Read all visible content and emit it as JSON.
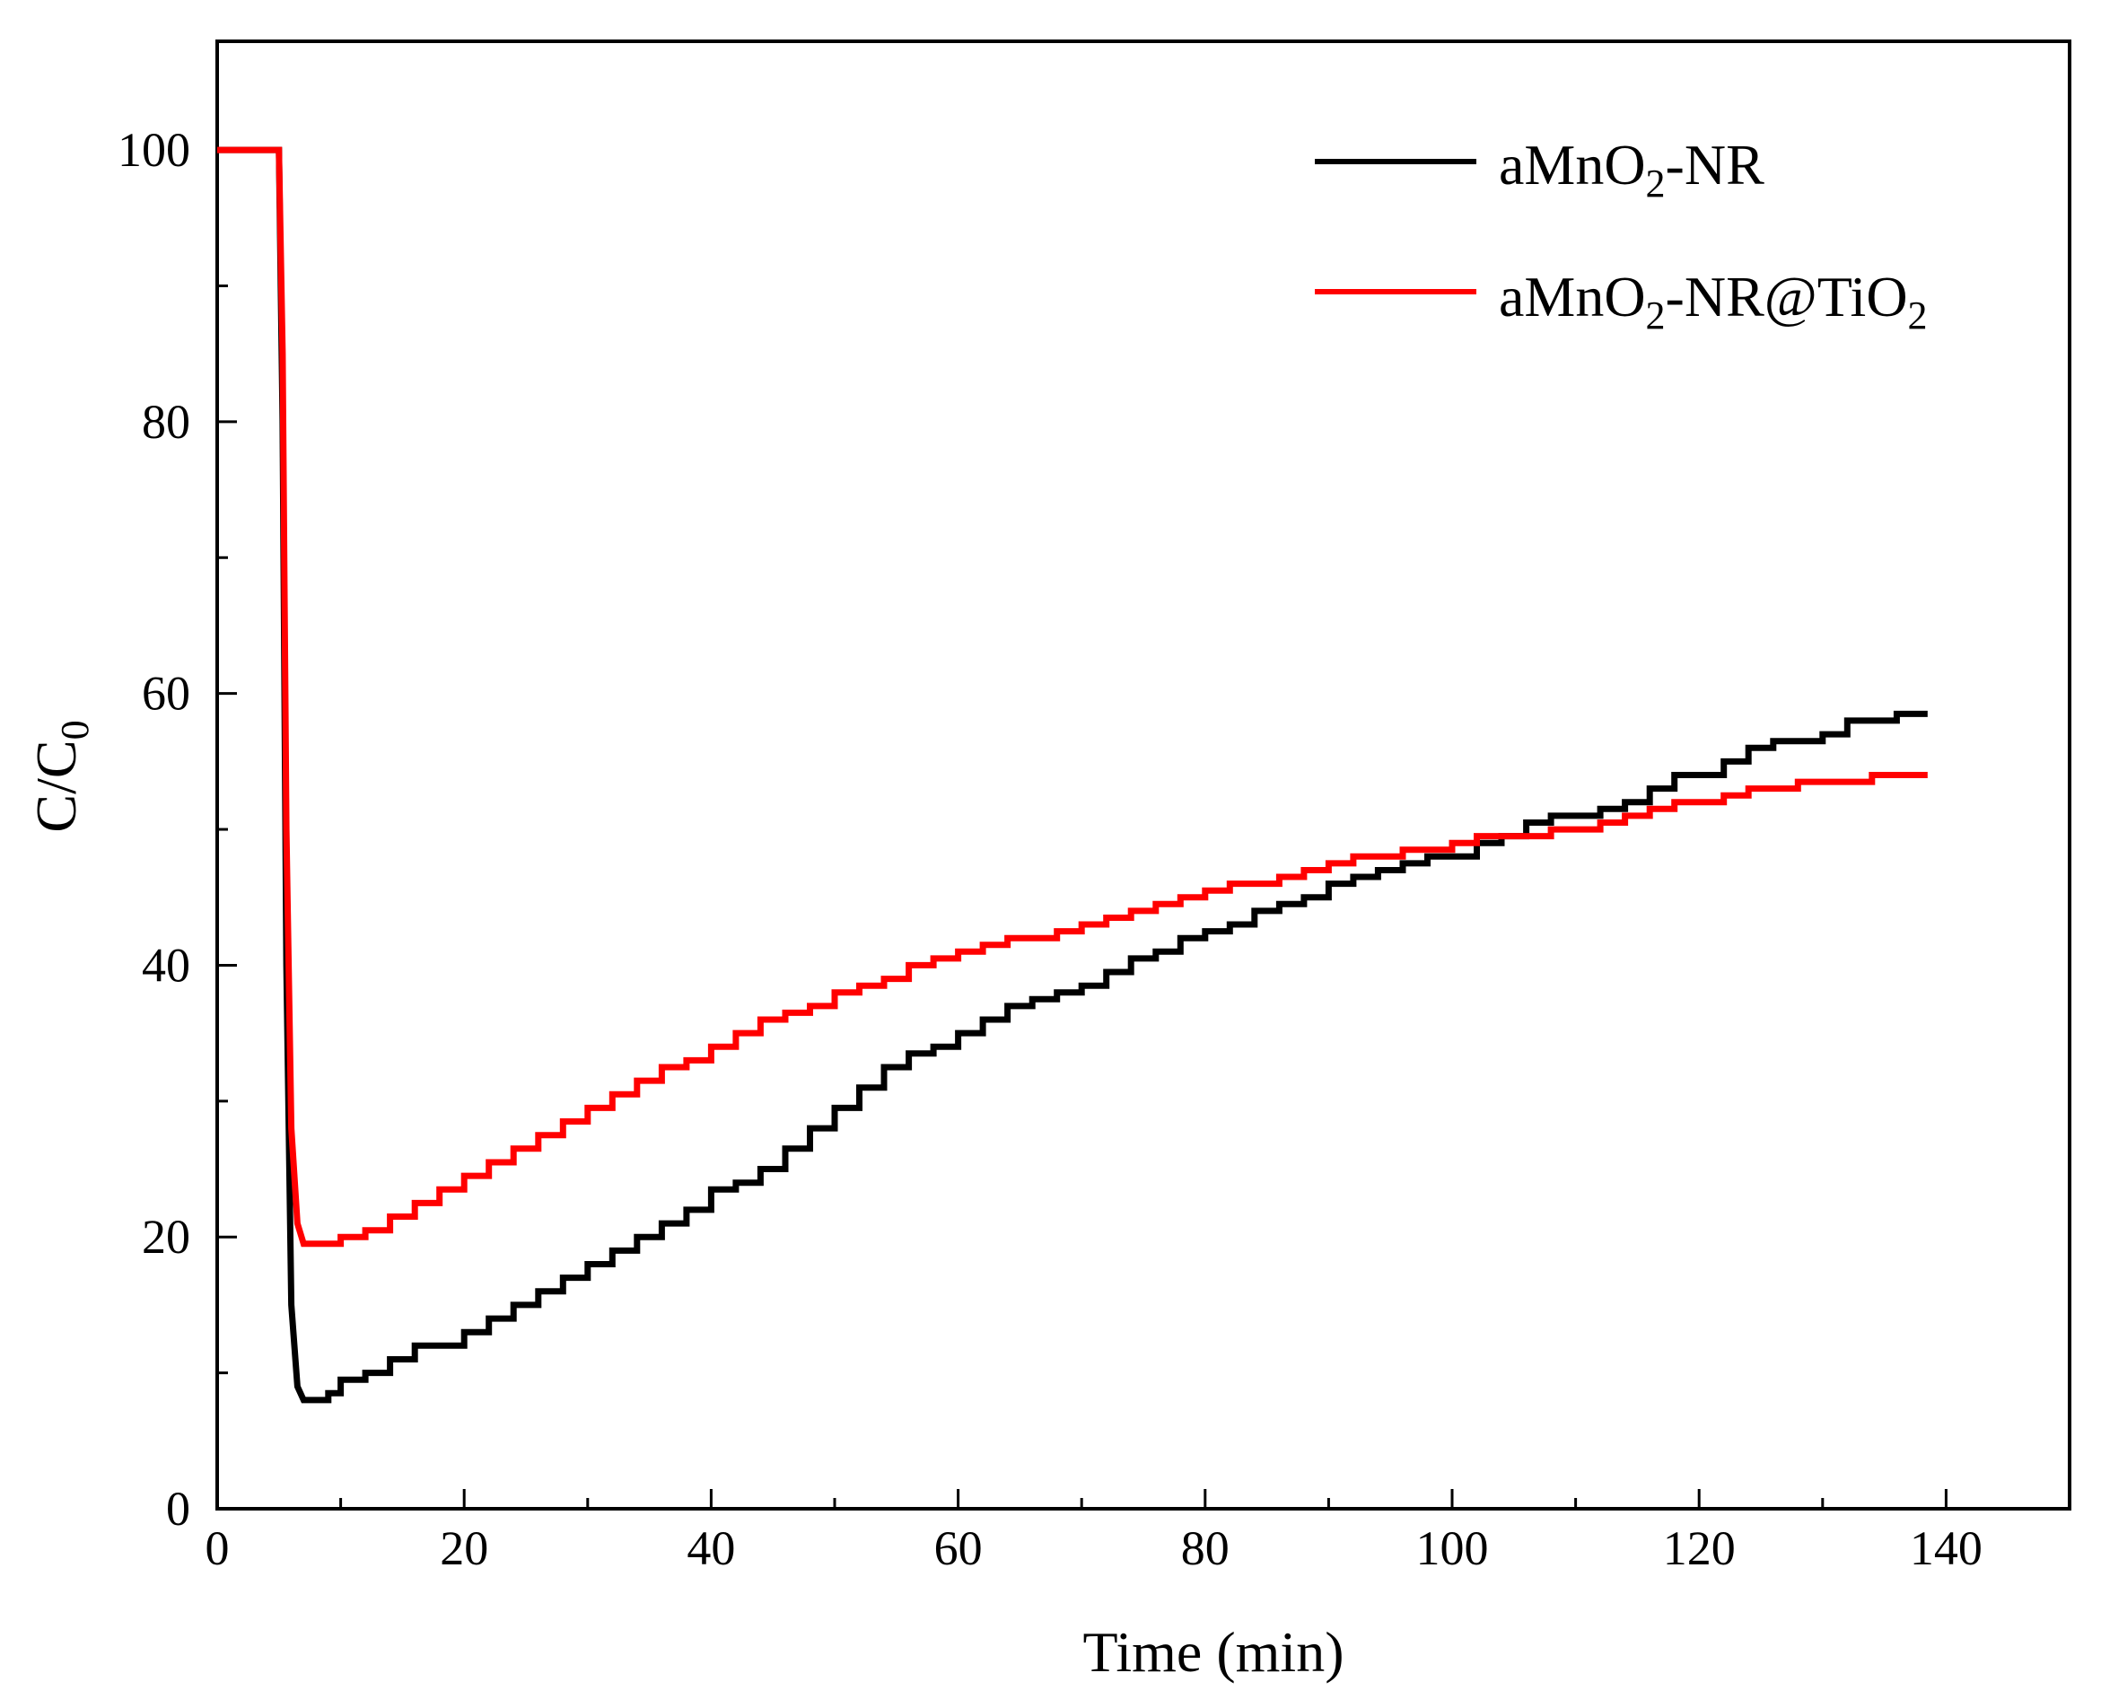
{
  "chart_data": {
    "type": "line",
    "title": "",
    "xlabel": "Time (min)",
    "ylabel": {
      "main": "C/C",
      "sub": "0"
    },
    "xlim": [
      0,
      150
    ],
    "ylim": [
      0,
      108
    ],
    "xticks": [
      "0",
      "20",
      "40",
      "60",
      "80",
      "100",
      "120",
      "140"
    ],
    "yticks": [
      "0",
      "20",
      "40",
      "60",
      "80",
      "100"
    ],
    "grid": false,
    "legend_position": "top-right",
    "series": [
      {
        "name": "aMnO2-NR",
        "legend_label": {
          "pre": "aMnO",
          "sub1": "2",
          "post": "-NR"
        },
        "color": "#000000",
        "x": [
          0,
          2,
          4,
          5,
          5.3,
          5.6,
          6,
          6.5,
          7,
          8,
          9,
          10,
          12,
          14,
          16,
          18,
          20,
          22,
          24,
          26,
          28,
          30,
          32,
          34,
          36,
          38,
          40,
          42,
          44,
          46,
          48,
          50,
          52,
          54,
          56,
          58,
          60,
          62,
          64,
          66,
          68,
          70,
          72,
          74,
          76,
          78,
          80,
          82,
          84,
          86,
          88,
          90,
          92,
          94,
          96,
          98,
          100,
          102,
          104,
          106,
          108,
          110,
          112,
          114,
          116,
          118,
          120,
          122,
          124,
          126,
          128,
          130,
          132,
          134,
          136,
          138.5
        ],
        "y": [
          100,
          100,
          100,
          100,
          80,
          40,
          15,
          9,
          8,
          8,
          8.5,
          9.5,
          10,
          11,
          12,
          12,
          13,
          14,
          15,
          16,
          17,
          18,
          19,
          20,
          21,
          22,
          23.5,
          24,
          25,
          26.5,
          28,
          29.5,
          31,
          32.5,
          33.5,
          34,
          35,
          36,
          37,
          37.5,
          38,
          38.5,
          39.5,
          40.5,
          41,
          42,
          42.5,
          43,
          44,
          44.5,
          45,
          46,
          46.5,
          47,
          47.5,
          48,
          48,
          49,
          49.5,
          50.5,
          51,
          51,
          51.5,
          52,
          53,
          54,
          54,
          55,
          56,
          56.5,
          56.5,
          57,
          58,
          58,
          58.5,
          58.5
        ]
      },
      {
        "name": "aMnO2-NR@TiO2",
        "legend_label": {
          "pre": "aMnO",
          "sub1": "2",
          "mid": "-NR@TiO",
          "sub2": "2"
        },
        "color": "#ff0000",
        "x": [
          0,
          2,
          4,
          5,
          5.3,
          5.6,
          6,
          6.5,
          7,
          8,
          9,
          10,
          12,
          14,
          16,
          18,
          20,
          22,
          24,
          26,
          28,
          30,
          32,
          34,
          36,
          38,
          40,
          42,
          44,
          46,
          48,
          50,
          52,
          54,
          56,
          58,
          60,
          62,
          64,
          66,
          68,
          70,
          72,
          74,
          76,
          78,
          80,
          82,
          84,
          86,
          88,
          90,
          92,
          94,
          96,
          98,
          100,
          102,
          104,
          106,
          108,
          110,
          112,
          114,
          116,
          118,
          120,
          122,
          124,
          126,
          128,
          130,
          132,
          134,
          136,
          138.5
        ],
        "y": [
          100,
          100,
          100,
          100,
          85,
          50,
          28,
          21,
          19.5,
          19.5,
          19.5,
          20,
          20.5,
          21.5,
          22.5,
          23.5,
          24.5,
          25.5,
          26.5,
          27.5,
          28.5,
          29.5,
          30.5,
          31.5,
          32.5,
          33,
          34,
          35,
          36,
          36.5,
          37,
          38,
          38.5,
          39,
          40,
          40.5,
          41,
          41.5,
          42,
          42,
          42.5,
          43,
          43.5,
          44,
          44.5,
          45,
          45.5,
          46,
          46,
          46.5,
          47,
          47.5,
          48,
          48,
          48.5,
          48.5,
          49,
          49.5,
          49.5,
          49.5,
          50,
          50,
          50.5,
          51,
          51.5,
          52,
          52,
          52.5,
          53,
          53,
          53.5,
          53.5,
          53.5,
          54,
          54,
          54
        ]
      }
    ]
  }
}
